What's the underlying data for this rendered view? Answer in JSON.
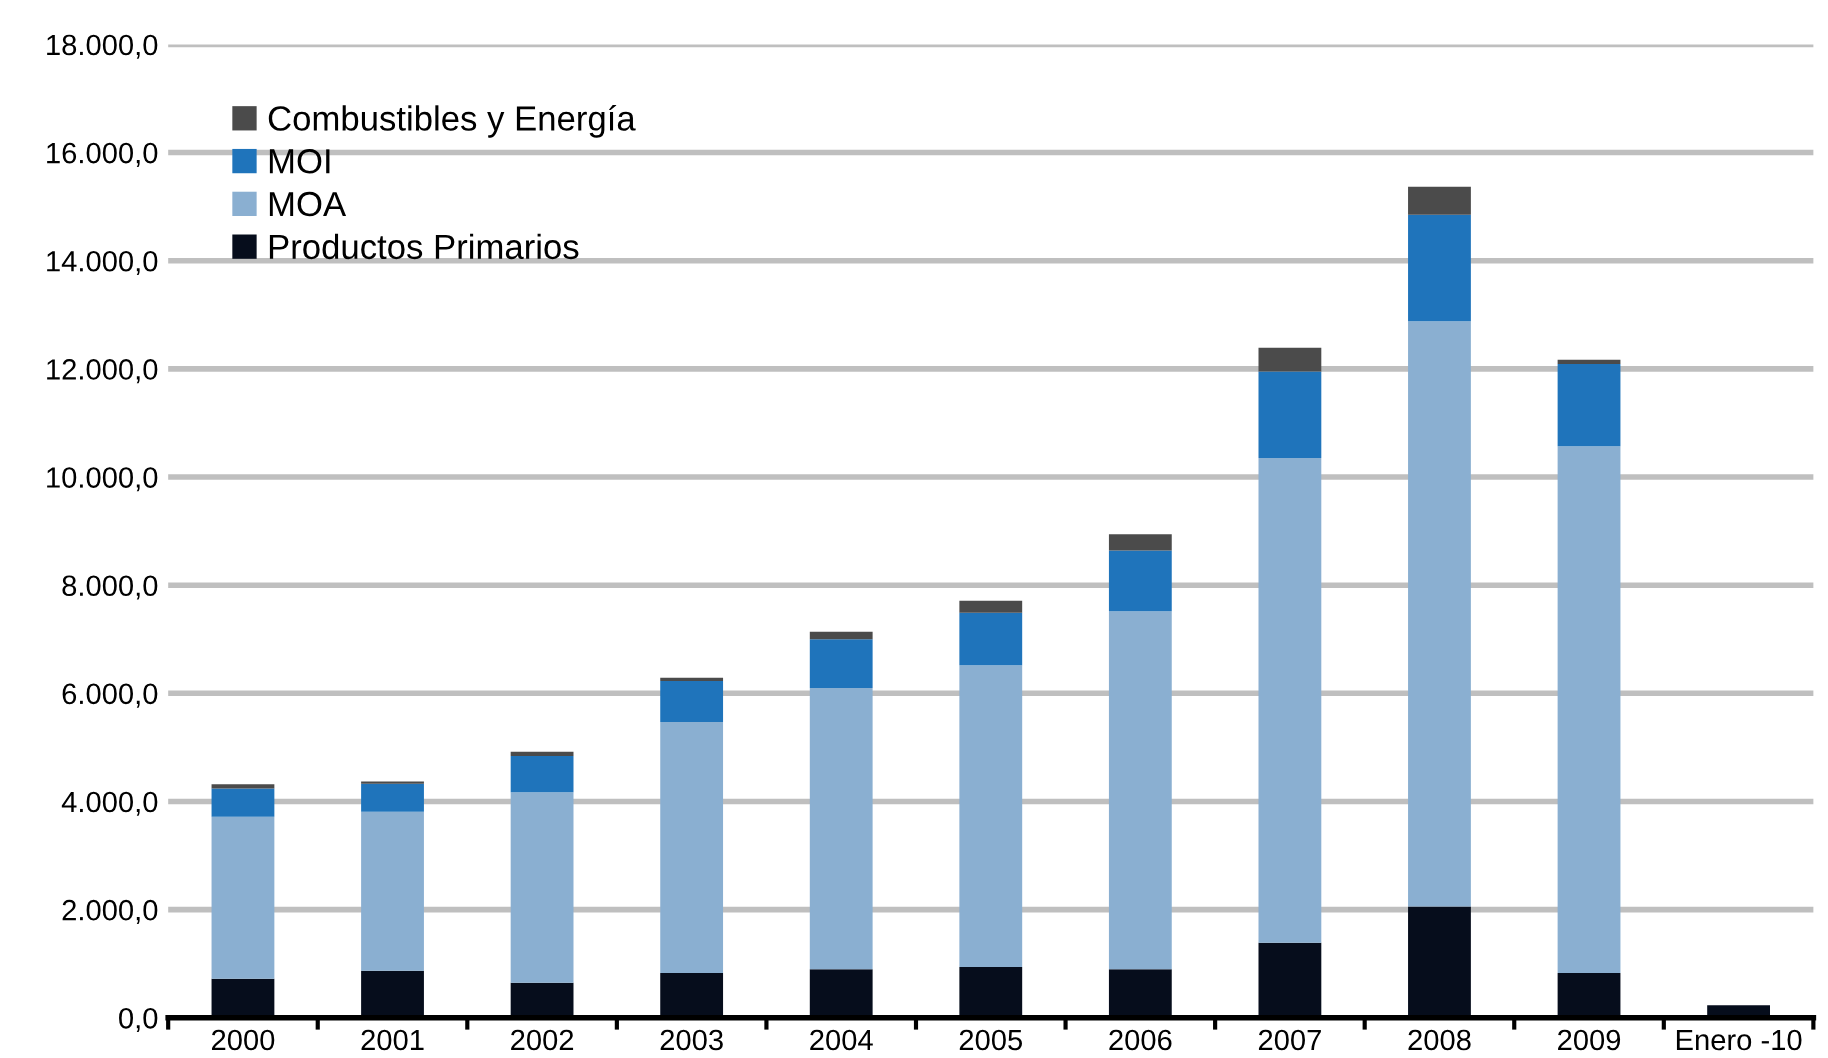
{
  "chart_data": {
    "type": "bar",
    "stacked": true,
    "categories": [
      "2000",
      "2001",
      "2002",
      "2003",
      "2004",
      "2005",
      "2006",
      "2007",
      "2008",
      "2009",
      "Enero -10"
    ],
    "series": [
      {
        "name": "Productos Primarios",
        "color": "#060d1c",
        "values": [
          720,
          870,
          650,
          830,
          900,
          940,
          900,
          1390,
          2060,
          830,
          230
        ]
      },
      {
        "name": "MOA",
        "color": "#8aafd1",
        "values": [
          3000,
          2940,
          3520,
          4640,
          5200,
          5580,
          6620,
          8960,
          10820,
          9740,
          0
        ]
      },
      {
        "name": "MOI",
        "color": "#1f74bb",
        "values": [
          520,
          520,
          670,
          760,
          900,
          970,
          1120,
          1600,
          1970,
          1520,
          0
        ]
      },
      {
        "name": "Combustibles y Energía",
        "color": "#4b4b4b",
        "values": [
          80,
          40,
          80,
          60,
          140,
          220,
          300,
          440,
          520,
          80,
          0
        ]
      }
    ],
    "ylim": [
      0,
      18000
    ],
    "yticks": [
      {
        "value": 0,
        "label": "0,0"
      },
      {
        "value": 2000,
        "label": "2.000,0"
      },
      {
        "value": 4000,
        "label": "4.000,0"
      },
      {
        "value": 6000,
        "label": "6.000,0"
      },
      {
        "value": 8000,
        "label": "8.000,0"
      },
      {
        "value": 10000,
        "label": "10.000,0"
      },
      {
        "value": 12000,
        "label": "12.000,0"
      },
      {
        "value": 14000,
        "label": "14.000,0"
      },
      {
        "value": 16000,
        "label": "16.000,0"
      },
      {
        "value": 18000,
        "label": "18.000,0"
      }
    ],
    "grid": "y",
    "legend": "top left"
  }
}
